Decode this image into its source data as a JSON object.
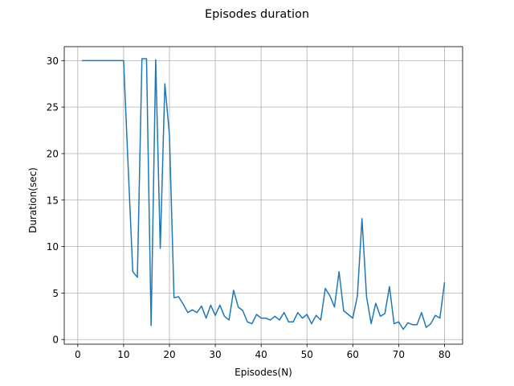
{
  "chart_data": {
    "type": "line",
    "title": "Episodes duration",
    "xlabel": "Episodes(N)",
    "ylabel": "Duration(sec)",
    "xlim": [
      -2.95,
      83.95
    ],
    "ylim": [
      -0.5,
      31.5
    ],
    "xticks": [
      0,
      10,
      20,
      30,
      40,
      50,
      60,
      70,
      80
    ],
    "yticks": [
      0,
      5,
      10,
      15,
      20,
      25,
      30
    ],
    "grid": true,
    "legend": "none",
    "series": [
      {
        "color": "#1f77b4",
        "x": [
          1,
          2,
          3,
          4,
          5,
          6,
          7,
          8,
          9,
          10,
          11,
          12,
          13,
          14,
          15,
          16,
          17,
          18,
          19,
          20,
          21,
          22,
          23,
          24,
          25,
          26,
          27,
          28,
          29,
          30,
          31,
          32,
          33,
          34,
          35,
          36,
          37,
          38,
          39,
          40,
          41,
          42,
          43,
          44,
          45,
          46,
          47,
          48,
          49,
          50,
          51,
          52,
          53,
          54,
          55,
          56,
          57,
          58,
          59,
          60,
          61,
          62,
          63,
          64,
          65,
          66,
          67,
          68,
          69,
          70,
          71,
          72,
          73,
          74,
          75,
          76,
          77,
          78,
          79,
          80
        ],
        "values": [
          30,
          30,
          30,
          30,
          30,
          30,
          30,
          30,
          30,
          30,
          18.5,
          7.3,
          6.7,
          30.2,
          30.2,
          1.5,
          30.1,
          9.8,
          27.5,
          22,
          4.5,
          4.6,
          3.8,
          2.9,
          3.2,
          2.9,
          3.6,
          2.3,
          3.7,
          2.6,
          3.7,
          2.5,
          2.1,
          5.3,
          3.5,
          3.1,
          1.9,
          1.7,
          2.7,
          2.3,
          2.3,
          2.1,
          2.5,
          2.1,
          2.9,
          1.9,
          1.9,
          2.9,
          2.3,
          2.7,
          1.7,
          2.6,
          2.1,
          5.5,
          4.7,
          3.5,
          7.3,
          3.1,
          2.7,
          2.3,
          4.7,
          13,
          4.6,
          1.7,
          3.9,
          2.5,
          2.8,
          5.7,
          1.7,
          1.9,
          1.1,
          1.8,
          1.6,
          1.6,
          2.9,
          1.3,
          1.7,
          2.6,
          2.3,
          6.1
        ]
      }
    ]
  }
}
